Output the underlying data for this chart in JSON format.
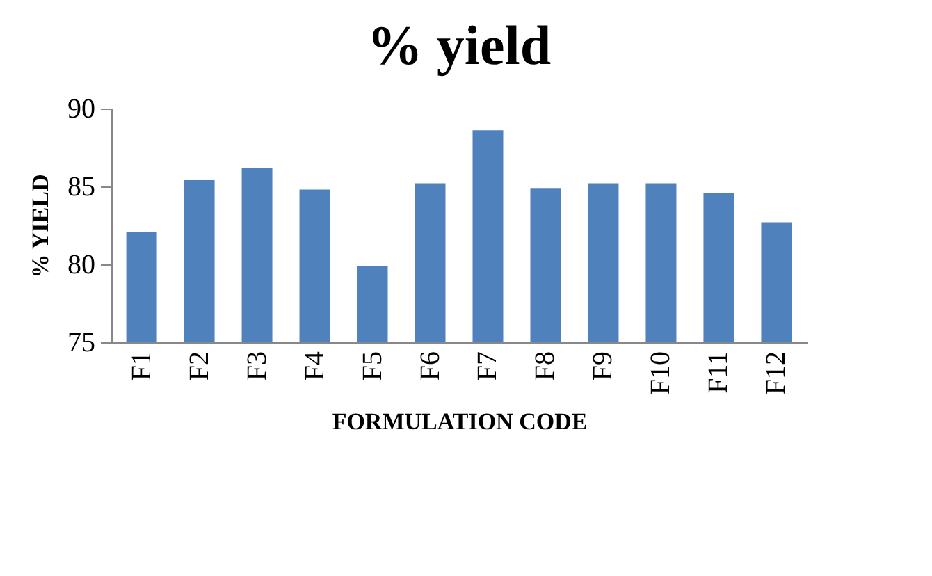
{
  "chart_data": {
    "type": "bar",
    "title": "%  yield",
    "xlabel": "FORMULATION CODE",
    "ylabel": "% YIELD",
    "categories": [
      "F1",
      "F2",
      "F3",
      "F4",
      "F5",
      "F6",
      "F7",
      "F8",
      "F9",
      "F10",
      "F11",
      "F12"
    ],
    "values": [
      82.1,
      85.4,
      86.2,
      84.8,
      79.9,
      85.2,
      88.6,
      84.9,
      85.2,
      85.2,
      84.6,
      82.7
    ],
    "color": "#4f81bd",
    "ylim": [
      75,
      90
    ],
    "yticks": [
      75,
      80,
      85,
      90
    ],
    "grid": false
  }
}
